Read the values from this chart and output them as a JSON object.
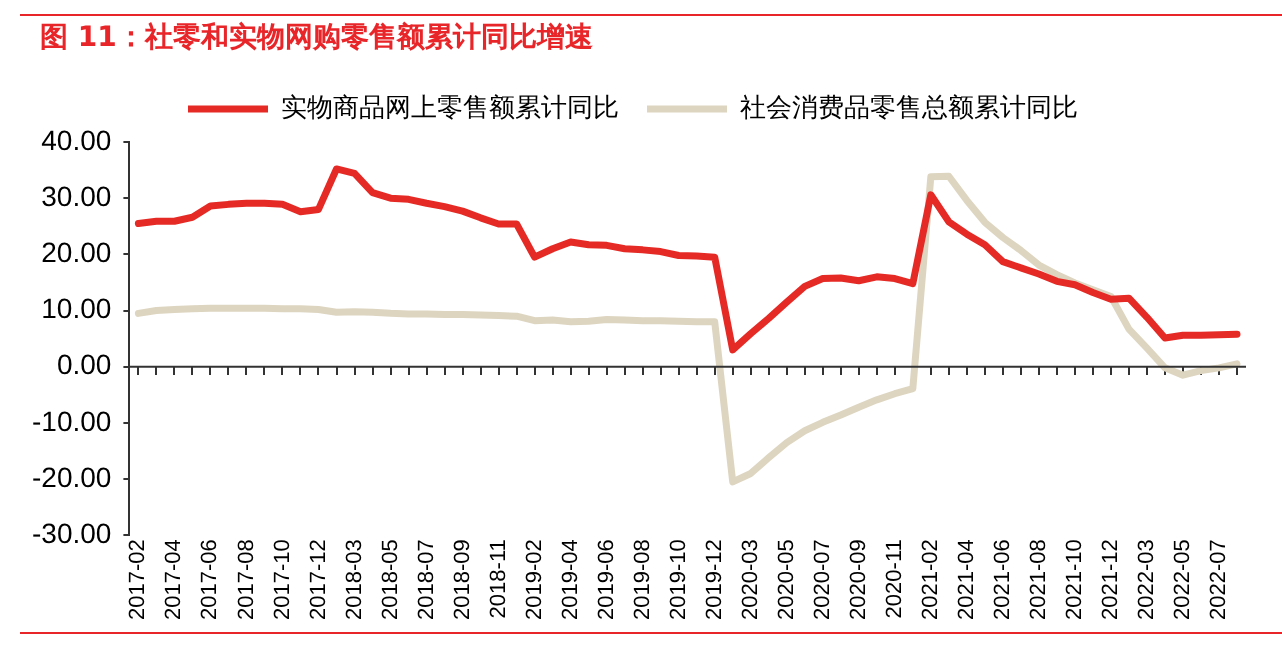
{
  "chart_data": {
    "type": "line",
    "title": "图 11：社零和实物网购零售额累计同比增速",
    "categories": [
      "2017-02",
      null,
      "2017-04",
      null,
      "2017-06",
      null,
      "2017-08",
      null,
      "2017-10",
      null,
      "2017-12",
      null,
      "2018-03",
      null,
      "2018-05",
      null,
      "2018-07",
      null,
      "2018-09",
      null,
      "2018-11",
      null,
      "2019-02",
      null,
      "2019-04",
      null,
      "2019-06",
      null,
      "2019-08",
      null,
      "2019-10",
      null,
      "2019-12",
      null,
      "2020-03",
      null,
      "2020-05",
      null,
      "2020-07",
      null,
      "2020-09",
      null,
      "2020-11",
      null,
      "2021-02",
      null,
      "2021-04",
      null,
      "2021-06",
      null,
      "2021-08",
      null,
      "2021-10",
      null,
      "2021-12",
      null,
      "2022-03",
      null,
      "2022-05",
      null,
      "2022-07",
      null
    ],
    "series": [
      {
        "name": "实物商品网上零售额累计同比",
        "color": "#e52a25",
        "values": [
          25.5,
          25.9,
          25.9,
          26.6,
          28.6,
          28.9,
          29.1,
          29.1,
          28.9,
          27.6,
          28.0,
          35.2,
          34.4,
          31.0,
          30.0,
          29.8,
          29.1,
          28.5,
          27.7,
          26.5,
          25.4,
          25.4,
          19.5,
          21.0,
          22.2,
          21.7,
          21.6,
          21.0,
          20.8,
          20.5,
          19.8,
          19.7,
          19.5,
          3.0,
          5.9,
          8.6,
          11.5,
          14.3,
          15.7,
          15.8,
          15.3,
          16.0,
          15.7,
          14.8,
          30.6,
          25.8,
          23.6,
          21.7,
          18.7,
          17.6,
          16.5,
          15.2,
          14.6,
          13.2,
          12.0,
          12.2,
          8.8,
          5.1,
          5.6,
          5.6,
          5.7,
          5.8
        ]
      },
      {
        "name": "社会消费品零售总额累计同比",
        "color": "#ddd5c0",
        "values": [
          9.5,
          10.0,
          10.2,
          10.3,
          10.4,
          10.4,
          10.4,
          10.4,
          10.3,
          10.3,
          10.2,
          9.7,
          9.8,
          9.7,
          9.5,
          9.4,
          9.4,
          9.3,
          9.3,
          9.2,
          9.1,
          9.0,
          8.2,
          8.3,
          8.0,
          8.1,
          8.4,
          8.3,
          8.2,
          8.2,
          8.1,
          8.0,
          8.0,
          -20.5,
          -19.0,
          -16.2,
          -13.5,
          -11.4,
          -9.9,
          -8.6,
          -7.2,
          -5.9,
          -4.8,
          -3.9,
          33.8,
          33.9,
          29.6,
          25.7,
          23.0,
          20.7,
          18.1,
          16.4,
          14.9,
          13.7,
          12.5,
          6.7,
          3.3,
          -0.2,
          -1.5,
          -0.7,
          -0.2,
          0.5
        ]
      }
    ],
    "ylim": [
      -30,
      40
    ],
    "yticks": [
      {
        "value": -30,
        "label": "-30.00"
      },
      {
        "value": -20,
        "label": "-20.00"
      },
      {
        "value": -10,
        "label": "-10.00"
      },
      {
        "value": 0,
        "label": "0.00"
      },
      {
        "value": 10,
        "label": "10.00"
      },
      {
        "value": 20,
        "label": "20.00"
      },
      {
        "value": 30,
        "label": "30.00"
      },
      {
        "value": 40,
        "label": "40.00"
      }
    ],
    "ref_lines": [
      {
        "axis": "y",
        "value": 0,
        "color": "#333333"
      }
    ],
    "grid": false,
    "legend": "top",
    "marker": "none",
    "line_style": "solid"
  }
}
